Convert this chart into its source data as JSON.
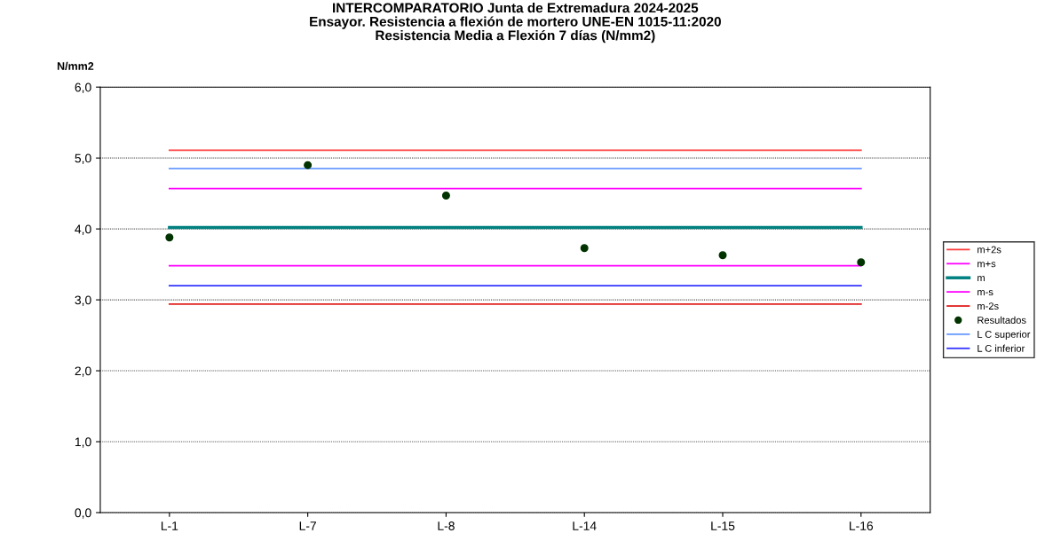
{
  "chart_data": {
    "type": "line",
    "title": "INTERCOMPARATORIO Junta de Extremadura 2024-2025\nEnsayor. Resistencia a flexión de mortero UNE-EN 1015-11:2020\nResistencia Media a Flexión 7 días (N/mm2)",
    "ylabel": "N/mm2",
    "categories": [
      "L-1",
      "L-7",
      "L-8",
      "L-14",
      "L-15",
      "L-16"
    ],
    "series": [
      {
        "name": "m+2s",
        "color": "#ff4040",
        "values": [
          5.11,
          5.11,
          5.11,
          5.11,
          5.11,
          5.11
        ]
      },
      {
        "name": "m+s",
        "color": "#ff00ff",
        "values": [
          4.57,
          4.57,
          4.57,
          4.57,
          4.57,
          4.57
        ]
      },
      {
        "name": "m",
        "color": "#008080",
        "values": [
          4.02,
          4.02,
          4.02,
          4.02,
          4.02,
          4.02
        ]
      },
      {
        "name": "m-s",
        "color": "#ff00ff",
        "values": [
          3.48,
          3.48,
          3.48,
          3.48,
          3.48,
          3.48
        ]
      },
      {
        "name": "m-2s",
        "color": "#e02020",
        "values": [
          2.94,
          2.94,
          2.94,
          2.94,
          2.94,
          2.94
        ]
      },
      {
        "name": "Resultados",
        "type": "scatter",
        "color": "#003300",
        "values": [
          3.88,
          4.9,
          4.47,
          3.73,
          3.63,
          3.53
        ]
      },
      {
        "name": "L C superior",
        "color": "#6699ff",
        "values": [
          4.85,
          4.85,
          4.85,
          4.85,
          4.85,
          4.85
        ]
      },
      {
        "name": "L C inferior",
        "color": "#3333ff",
        "values": [
          3.2,
          3.2,
          3.2,
          3.2,
          3.2,
          3.2
        ]
      }
    ],
    "ylim": [
      0,
      6
    ],
    "yticks": [
      {
        "value": 0,
        "label": "0,0"
      },
      {
        "value": 1,
        "label": "1,0"
      },
      {
        "value": 2,
        "label": "2,0"
      },
      {
        "value": 3,
        "label": "3,0"
      },
      {
        "value": 4,
        "label": "4,0"
      },
      {
        "value": 5,
        "label": "5,0"
      },
      {
        "value": 6,
        "label": "6,0"
      }
    ],
    "grid": "y",
    "legend": "right"
  }
}
